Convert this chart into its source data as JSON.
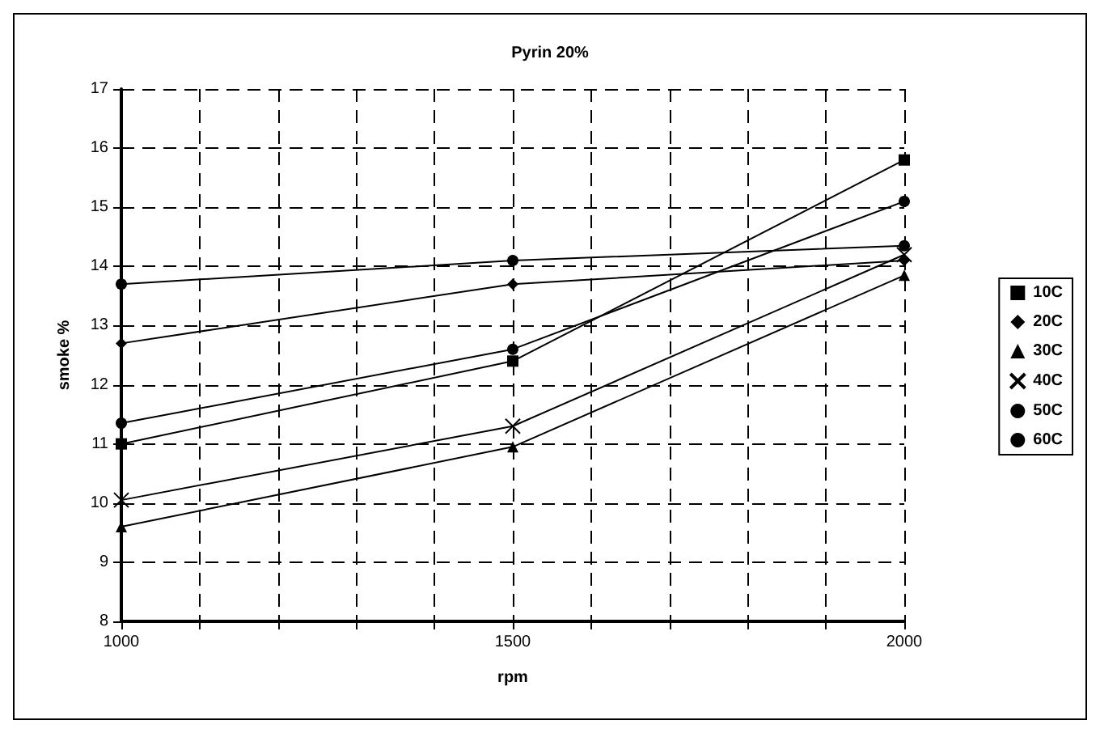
{
  "chart_data": {
    "type": "line",
    "title": "Pyrin 20%",
    "xlabel": "rpm",
    "ylabel": "smoke %",
    "x": [
      1000,
      1500,
      2000
    ],
    "xlim": [
      1000,
      2000
    ],
    "xticks": [
      1000,
      {
        "value": 1100,
        "label": null
      },
      {
        "value": 1200,
        "label": null
      },
      {
        "value": 1300,
        "label": null
      },
      {
        "value": 1400,
        "label": null
      },
      1500,
      {
        "value": 1600,
        "label": null
      },
      {
        "value": 1700,
        "label": null
      },
      {
        "value": 1800,
        "label": null
      },
      {
        "value": 1900,
        "label": null
      },
      2000
    ],
    "ylim": [
      8,
      17
    ],
    "yticks": [
      8,
      9,
      10,
      11,
      12,
      13,
      14,
      15,
      16,
      17
    ],
    "grid": true,
    "legend": "right",
    "line_style": "solid",
    "series": [
      {
        "name": "10C",
        "color": "#000000",
        "marker": "square",
        "values": [
          11.0,
          12.4,
          15.8
        ]
      },
      {
        "name": "20C",
        "color": "#000000",
        "marker": "diamond",
        "values": [
          12.7,
          13.7,
          14.1
        ]
      },
      {
        "name": "30C",
        "color": "#000000",
        "marker": "triangle",
        "values": [
          9.6,
          10.95,
          13.85
        ]
      },
      {
        "name": "40C",
        "color": "#000000",
        "marker": "cross",
        "values": [
          10.05,
          11.3,
          14.2
        ]
      },
      {
        "name": "50C",
        "color": "#000000",
        "marker": "circle",
        "values": [
          11.35,
          12.6,
          15.1
        ]
      },
      {
        "name": "60C",
        "color": "#000000",
        "marker": "circle",
        "values": [
          13.7,
          14.1,
          14.35
        ]
      }
    ]
  }
}
